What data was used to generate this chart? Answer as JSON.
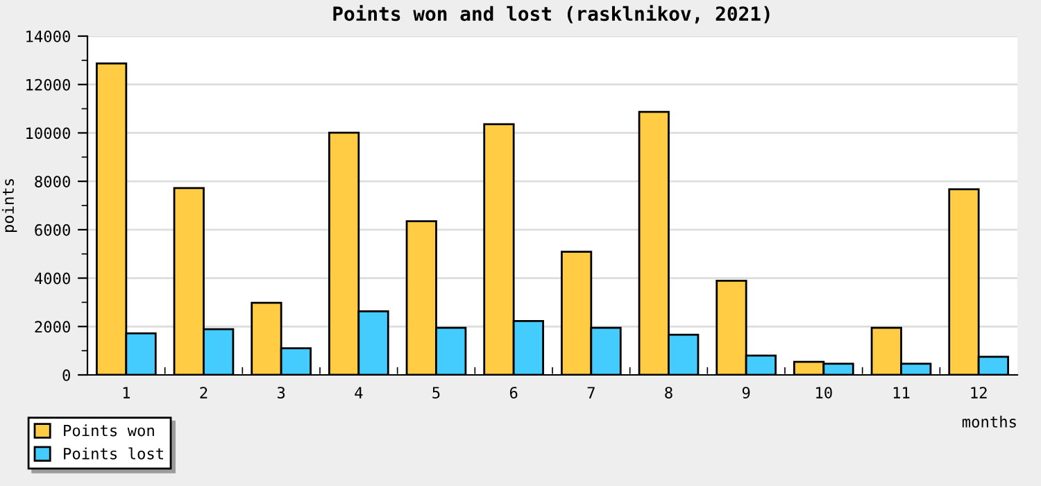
{
  "chart_data": {
    "type": "bar",
    "title": "Points won and lost (rasklnikov, 2021)",
    "xlabel": "months",
    "ylabel": "points",
    "categories": [
      "1",
      "2",
      "3",
      "4",
      "5",
      "6",
      "7",
      "8",
      "9",
      "10",
      "11",
      "12"
    ],
    "series": [
      {
        "name": "Points won",
        "color": "#ffcc44",
        "values": [
          12870,
          7720,
          2980,
          10010,
          6350,
          10360,
          5090,
          10870,
          3890,
          540,
          1950,
          7670
        ]
      },
      {
        "name": "Points lost",
        "color": "#44ccff",
        "values": [
          1720,
          1890,
          1100,
          2630,
          1950,
          2230,
          1950,
          1660,
          800,
          460,
          460,
          750
        ]
      }
    ],
    "ylim": [
      0,
      14000
    ],
    "yticks": [
      0,
      2000,
      4000,
      6000,
      8000,
      10000,
      12000,
      14000
    ],
    "grid": "y",
    "legend": "bottom left"
  }
}
